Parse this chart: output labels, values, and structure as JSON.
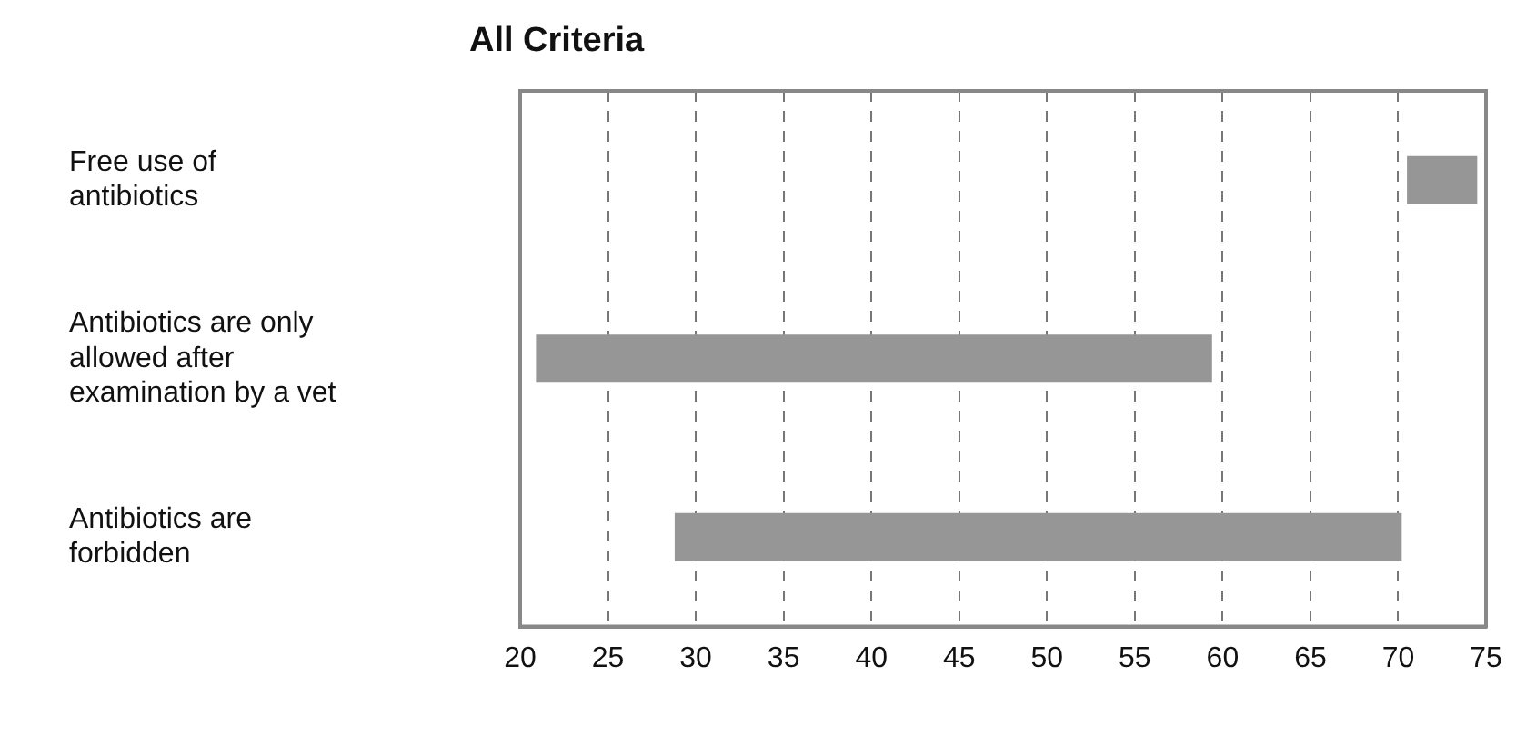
{
  "chart_data": {
    "type": "bar",
    "orientation": "horizontal",
    "title": "All Criteria",
    "categories": [
      "Free use of antibiotics",
      "Antibiotics are only allowed after examination by a vet",
      "Antibiotics are forbidden"
    ],
    "base": [
      70.5,
      20.9,
      28.8
    ],
    "values": [
      4,
      38.5,
      41.4
    ],
    "color": "#969696",
    "xlim": [
      20,
      75
    ],
    "xticks": [
      20,
      25,
      30,
      35,
      40,
      45,
      50,
      55,
      60,
      65,
      70,
      75
    ],
    "grid": "x",
    "legend": false
  }
}
